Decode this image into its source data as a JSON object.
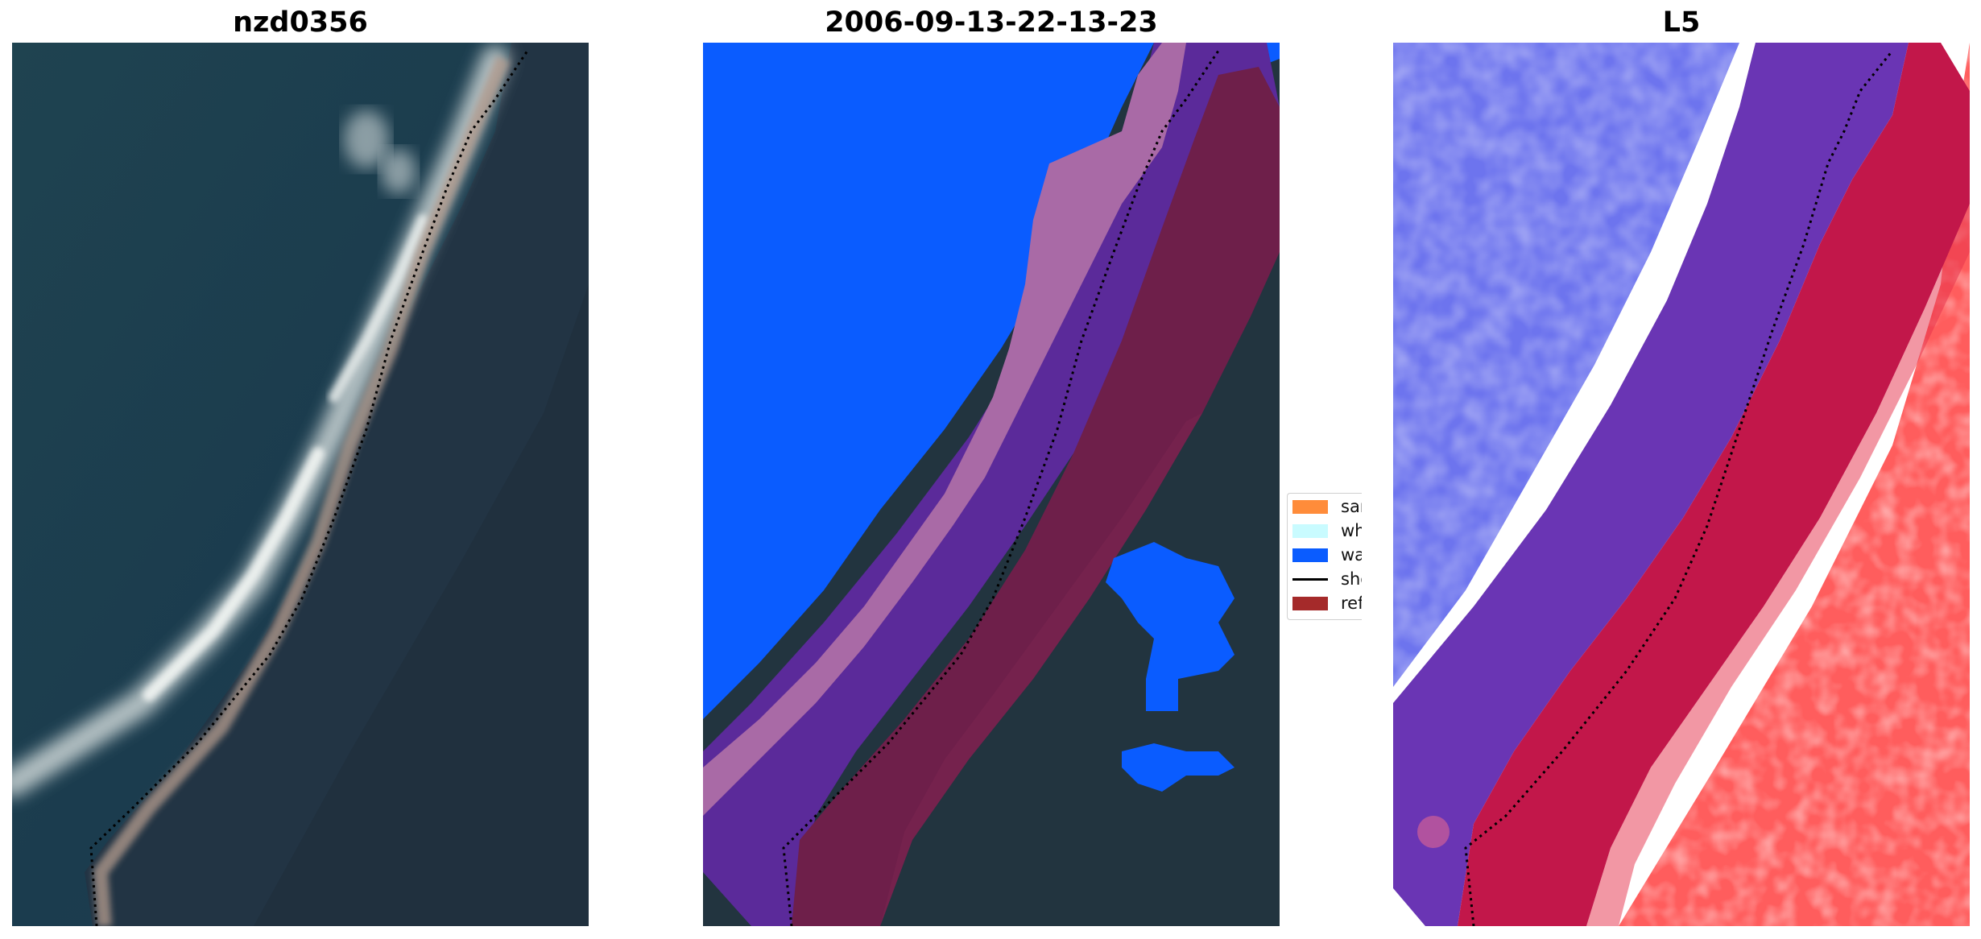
{
  "panels": [
    {
      "title": "nzd0356"
    },
    {
      "title": "2006-09-13-22-13-23"
    },
    {
      "title": "L5"
    }
  ],
  "legend": {
    "items": [
      {
        "label": "sand",
        "color": "#ff8c3a",
        "kind": "patch"
      },
      {
        "label": "whitewater",
        "color": "#c9fbff",
        "kind": "patch"
      },
      {
        "label": "water",
        "color": "#0a5cff",
        "kind": "patch"
      },
      {
        "label": "shoreline",
        "color": "#000000",
        "kind": "line"
      },
      {
        "label": "reference shoreline buffer",
        "color": "#a52a2a",
        "kind": "patch"
      }
    ]
  },
  "colors": {
    "water_class": "#0a5cff",
    "buffer_purple": "#5b2a9a",
    "buffer_red": "#8a1f4a",
    "sea_dark": "#1d3a4e",
    "land_dark": "#22343f",
    "index_blue": "#6a74ef",
    "index_red": "#ff5a5a"
  }
}
